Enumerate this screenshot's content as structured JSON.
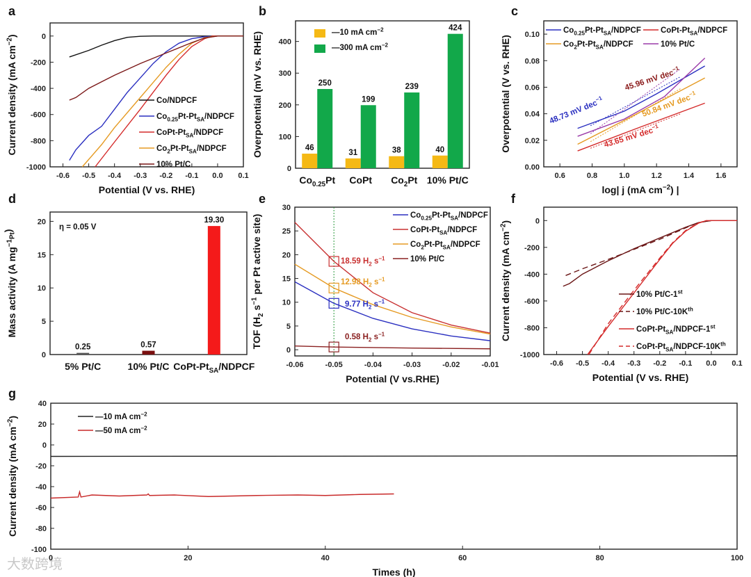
{
  "figure": {
    "watermark": "大数跨境"
  },
  "chart_data": [
    {
      "panel": "a",
      "type": "line",
      "xlabel": "Potential (V vs. RHE)",
      "ylabel": "Current density (mA cm^{−2})",
      "xlim": [
        -0.65,
        0.1
      ],
      "ylim": [
        -1000,
        100
      ],
      "xticks": [
        "-0.6",
        "-0.5",
        "-0.4",
        "-0.3",
        "-0.2",
        "-0.1",
        "0.0",
        "0.1"
      ],
      "yticks": [
        "0",
        "-200",
        "-400",
        "-600",
        "-800",
        "-1000"
      ],
      "series": [
        {
          "name": "Co/NDPCF",
          "color": "#111111",
          "points": [
            [
              -0.575,
              -160
            ],
            [
              -0.5,
              -110
            ],
            [
              -0.45,
              -70
            ],
            [
              -0.4,
              -35
            ],
            [
              -0.35,
              -10
            ],
            [
              -0.3,
              -2
            ],
            [
              -0.25,
              0
            ],
            [
              0.1,
              0
            ]
          ]
        },
        {
          "name": "Co_{0.25}Pt-Pt_{SA}/NDPCF",
          "color": "#2a2fc0",
          "points": [
            [
              -0.575,
              -950
            ],
            [
              -0.55,
              -870
            ],
            [
              -0.5,
              -760
            ],
            [
              -0.45,
              -690
            ],
            [
              -0.4,
              -560
            ],
            [
              -0.35,
              -430
            ],
            [
              -0.3,
              -320
            ],
            [
              -0.25,
              -210
            ],
            [
              -0.2,
              -120
            ],
            [
              -0.15,
              -55
            ],
            [
              -0.1,
              -20
            ],
            [
              -0.05,
              -5
            ],
            [
              0,
              0
            ],
            [
              0.1,
              0
            ]
          ]
        },
        {
          "name": "CoPt-Pt_{SA}/NDPCF",
          "color": "#d42a2a",
          "points": [
            [
              -0.475,
              -1000
            ],
            [
              -0.4,
              -810
            ],
            [
              -0.3,
              -560
            ],
            [
              -0.2,
              -300
            ],
            [
              -0.15,
              -180
            ],
            [
              -0.1,
              -80
            ],
            [
              -0.05,
              -20
            ],
            [
              -0.02,
              0
            ],
            [
              0.1,
              0
            ]
          ]
        },
        {
          "name": "Co_{2}Pt-Pt_{SA}/NDPCF",
          "color": "#e59a22",
          "points": [
            [
              -0.525,
              -1000
            ],
            [
              -0.45,
              -830
            ],
            [
              -0.4,
              -700
            ],
            [
              -0.3,
              -470
            ],
            [
              -0.2,
              -240
            ],
            [
              -0.15,
              -140
            ],
            [
              -0.1,
              -55
            ],
            [
              -0.05,
              -12
            ],
            [
              0,
              0
            ],
            [
              0.1,
              0
            ]
          ]
        },
        {
          "name": "10% Pt/C",
          "color": "#7a1717",
          "points": [
            [
              -0.575,
              -490
            ],
            [
              -0.55,
              -470
            ],
            [
              -0.5,
              -400
            ],
            [
              -0.45,
              -350
            ],
            [
              -0.4,
              -300
            ],
            [
              -0.3,
              -210
            ],
            [
              -0.2,
              -130
            ],
            [
              -0.1,
              -50
            ],
            [
              -0.05,
              -15
            ],
            [
              0,
              0
            ],
            [
              0.1,
              0
            ]
          ]
        }
      ],
      "annotations": []
    },
    {
      "panel": "b",
      "type": "bar",
      "xlabel": "",
      "ylabel": "Overpotential (mV vs. RHE)",
      "ylim": [
        0,
        465
      ],
      "yticks": [
        "0",
        "100",
        "200",
        "300",
        "400"
      ],
      "categories": [
        "Co_{0.25}Pt",
        "CoPt",
        "Co_{2}Pt",
        "10% Pt/C"
      ],
      "series": [
        {
          "name": "—10 mA cm^{−2}",
          "color": "#f5b915",
          "values": [
            46,
            31,
            38,
            40
          ]
        },
        {
          "name": "—300 mA cm^{−2}",
          "color": "#12a84a",
          "values": [
            250,
            199,
            239,
            424
          ]
        }
      ],
      "annotations": []
    },
    {
      "panel": "c",
      "type": "line",
      "xlabel": "log| j (mA cm^{−2}) |",
      "ylabel": "Overpotential (V vs. RHE)",
      "xlim": [
        0.5,
        1.7
      ],
      "ylim": [
        0,
        0.11
      ],
      "xticks": [
        "0.6",
        "0.8",
        "1.0",
        "1.2",
        "1.4",
        "1.6"
      ],
      "yticks": [
        "0.00",
        "0.02",
        "0.04",
        "0.06",
        "0.08",
        "0.10"
      ],
      "series": [
        {
          "name": "Co_{0.25}Pt-Pt_{SA}/NDPCF",
          "color": "#2a2fc0",
          "points": [
            [
              0.71,
              0.029
            ],
            [
              1.0,
              0.042
            ],
            [
              1.2,
              0.055
            ],
            [
              1.5,
              0.076
            ]
          ]
        },
        {
          "name": "CoPt-Pt_{SA}/NDPCF",
          "color": "#d42a2a",
          "points": [
            [
              0.71,
              0.012
            ],
            [
              1.1,
              0.03
            ],
            [
              1.5,
              0.048
            ]
          ]
        },
        {
          "name": "Co_{2}Pt-Pt_{SA}/NDPCF",
          "color": "#e59a22",
          "points": [
            [
              0.71,
              0.017
            ],
            [
              1.0,
              0.035
            ],
            [
              1.5,
              0.067
            ]
          ]
        },
        {
          "name": "10% Pt/C",
          "color": "#9a3aa8",
          "points": [
            [
              0.71,
              0.023
            ],
            [
              1.0,
              0.036
            ],
            [
              1.25,
              0.053
            ],
            [
              1.5,
              0.082
            ]
          ]
        }
      ],
      "annotations": [
        {
          "text": "48.73 mV dec^{−1}",
          "color": "#2a2fc0"
        },
        {
          "text": "45.96 mV dec^{−1}",
          "color": "#8a1a1a"
        },
        {
          "text": "50.84 mV dec^{−1}",
          "color": "#e59a22"
        },
        {
          "text": "43.65 mV dec^{−1}",
          "color": "#d42a2a"
        }
      ]
    },
    {
      "panel": "d",
      "type": "bar",
      "xlabel": "",
      "ylabel": "Mass activity (A mg^{−1}_{Pt})",
      "ylim": [
        0,
        21.4
      ],
      "yticks": [
        "0",
        "5",
        "10",
        "15",
        "20"
      ],
      "categories": [
        "5% Pt/C",
        "10% Pt/C",
        "CoPt-Pt_{SA}/NDPCF"
      ],
      "series": [
        {
          "name": "Mass activity",
          "colors": [
            "#555555",
            "#7a0f0f",
            "#f41a1a"
          ],
          "values": [
            0.25,
            0.57,
            19.3
          ],
          "labels": [
            "0.25",
            "0.57",
            "19.30"
          ]
        }
      ],
      "annotations": [
        {
          "text": "η = 0.05 V",
          "color": "#111111"
        }
      ]
    },
    {
      "panel": "e",
      "type": "line",
      "xlabel": "Potential (V vs.RHE)",
      "ylabel": "TOF (H_{2} s^{−1} per Pt active site)",
      "xlim": [
        -0.06,
        -0.01
      ],
      "ylim": [
        -1.3,
        30
      ],
      "xticks": [
        "-0.06",
        "-0.05",
        "-0.04",
        "-0.03",
        "-0.02",
        "-0.01"
      ],
      "yticks": [
        "0",
        "5",
        "10",
        "15",
        "20",
        "25",
        "30"
      ],
      "marker_x": -0.05,
      "series": [
        {
          "name": "Co_{0.25}Pt-Pt_{SA}/NDPCF",
          "color": "#2a2fc0",
          "marker_y": 9.77,
          "points": [
            [
              -0.06,
              14.3
            ],
            [
              -0.05,
              9.77
            ],
            [
              -0.04,
              6.6
            ],
            [
              -0.03,
              4.4
            ],
            [
              -0.02,
              2.9
            ],
            [
              -0.01,
              1.9
            ]
          ]
        },
        {
          "name": "CoPt-Pt_{SA}/NDPCF",
          "color": "#c83030",
          "marker_y": 18.59,
          "points": [
            [
              -0.06,
              26.8
            ],
            [
              -0.05,
              18.59
            ],
            [
              -0.04,
              12.0
            ],
            [
              -0.03,
              7.8
            ],
            [
              -0.02,
              5.2
            ],
            [
              -0.01,
              3.5
            ]
          ]
        },
        {
          "name": "Co_{2}Pt-Pt_{SA}/NDPCF",
          "color": "#e59a22",
          "marker_y": 12.98,
          "points": [
            [
              -0.06,
              18.0
            ],
            [
              -0.05,
              12.98
            ],
            [
              -0.04,
              9.5
            ],
            [
              -0.03,
              6.8
            ],
            [
              -0.02,
              4.8
            ],
            [
              -0.01,
              3.3
            ]
          ]
        },
        {
          "name": "10% Pt/C",
          "color": "#8a2020",
          "marker_y": 0.58,
          "points": [
            [
              -0.06,
              0.8
            ],
            [
              -0.05,
              0.58
            ],
            [
              -0.03,
              0.35
            ],
            [
              -0.01,
              0.2
            ]
          ]
        }
      ],
      "annotations": [
        {
          "text": "9.77 H_{2} s^{−1}",
          "color": "#2a2fc0"
        },
        {
          "text": "18.59 H_{2} s^{−1}",
          "color": "#c83030"
        },
        {
          "text": "12.98 H_{2} s^{−1}",
          "color": "#e59a22"
        },
        {
          "text": "0.58 H_{2} s^{−1}",
          "color": "#8a2020"
        }
      ]
    },
    {
      "panel": "f",
      "type": "line",
      "xlabel": "Potential (V vs. RHE)",
      "ylabel": "Current density (mA cm^{−2})",
      "xlim": [
        -0.65,
        0.1
      ],
      "ylim": [
        -1000,
        100
      ],
      "xticks": [
        "-0.6",
        "-0.5",
        "-0.4",
        "-0.3",
        "-0.2",
        "-0.1",
        "0.0",
        "0.1"
      ],
      "yticks": [
        "0",
        "-200",
        "-400",
        "-600",
        "-800",
        "-1000"
      ],
      "series": [
        {
          "name": "10% Pt/C-1^{st}",
          "color": "#6a1515",
          "dashed": false,
          "points": [
            [
              -0.575,
              -490
            ],
            [
              -0.55,
              -470
            ],
            [
              -0.5,
              -400
            ],
            [
              -0.45,
              -350
            ],
            [
              -0.4,
              -300
            ],
            [
              -0.3,
              -210
            ],
            [
              -0.2,
              -130
            ],
            [
              -0.1,
              -50
            ],
            [
              -0.05,
              -15
            ],
            [
              0,
              0
            ],
            [
              0.1,
              0
            ]
          ]
        },
        {
          "name": "10% Pt/C-10K^{th}",
          "color": "#6a1515",
          "dashed": true,
          "points": [
            [
              -0.565,
              -410
            ],
            [
              -0.5,
              -360
            ],
            [
              -0.4,
              -290
            ],
            [
              -0.3,
              -215
            ],
            [
              -0.2,
              -140
            ],
            [
              -0.1,
              -55
            ],
            [
              -0.05,
              -15
            ],
            [
              0,
              0
            ]
          ]
        },
        {
          "name": "CoPt-Pt_{SA}/NDPCF-1^{st}",
          "color": "#d42a2a",
          "dashed": false,
          "points": [
            [
              -0.48,
              -1000
            ],
            [
              -0.4,
              -790
            ],
            [
              -0.3,
              -540
            ],
            [
              -0.2,
              -290
            ],
            [
              -0.15,
              -170
            ],
            [
              -0.1,
              -80
            ],
            [
              -0.05,
              -20
            ],
            [
              -0.02,
              0
            ],
            [
              0.1,
              0
            ]
          ]
        },
        {
          "name": "CoPt-Pt_{SA}/NDPCF-10K^{th}",
          "color": "#d42a2a",
          "dashed": true,
          "points": [
            [
              -0.475,
              -1000
            ],
            [
              -0.4,
              -770
            ],
            [
              -0.3,
              -520
            ],
            [
              -0.2,
              -280
            ],
            [
              -0.15,
              -165
            ],
            [
              -0.1,
              -75
            ],
            [
              -0.05,
              -18
            ],
            [
              -0.02,
              0
            ]
          ]
        }
      ],
      "annotations": []
    },
    {
      "panel": "g",
      "type": "line",
      "xlabel": "Times (h)",
      "ylabel": "Current density (mA cm^{−2})",
      "xlim": [
        0,
        100
      ],
      "ylim": [
        -100,
        40
      ],
      "xticks": [
        "0",
        "20",
        "40",
        "60",
        "80",
        "100"
      ],
      "yticks": [
        "40",
        "20",
        "0",
        "-20",
        "-40",
        "-60",
        "-80",
        "-100"
      ],
      "series": [
        {
          "name": "—10 mA cm^{−2}",
          "color": "#222222",
          "points": [
            [
              0,
              -11
            ],
            [
              100,
              -10.5
            ]
          ]
        },
        {
          "name": "—50 mA cm^{−2}",
          "color": "#c82828",
          "points": [
            [
              0,
              -51
            ],
            [
              4,
              -50
            ],
            [
              4.2,
              -45
            ],
            [
              4.4,
              -50
            ],
            [
              6,
              -48
            ],
            [
              10,
              -49
            ],
            [
              14,
              -48
            ],
            [
              14.2,
              -47
            ],
            [
              14.4,
              -48.5
            ],
            [
              18,
              -48
            ],
            [
              23,
              -49.5
            ],
            [
              30,
              -48.5
            ],
            [
              36,
              -48
            ],
            [
              40,
              -48.5
            ],
            [
              45,
              -47.5
            ],
            [
              50,
              -47
            ]
          ]
        }
      ],
      "annotations": []
    }
  ]
}
